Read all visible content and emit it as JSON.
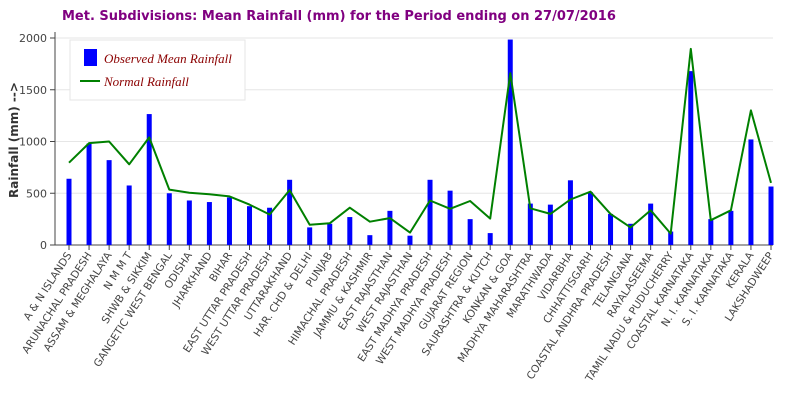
{
  "colors": {
    "observed": "#0000ff",
    "normal": "#008000",
    "title": "#800080",
    "legend_text": "#8b0000",
    "grid": "#e6e6e6"
  },
  "chart_data": {
    "type": "bar",
    "title": "Met. Subdivisions: Mean Rainfall (mm) for the Period ending on 27/07/2016",
    "xlabel": "",
    "ylabel": "Rainfall (mm) -->",
    "ylim": [
      0,
      2000
    ],
    "yticks": [
      0,
      500,
      1000,
      1500,
      2000
    ],
    "grid": true,
    "legend_position": "top-left",
    "categories": [
      "A & N ISLANDS",
      "ARUNACHAL PRADESH",
      "ASSAM & MEGHALAYA",
      "N M M T",
      "SHWB & SIKKIM",
      "GANGETIC WEST BENGAL",
      "ODISHA",
      "JHARKHAND",
      "BIHAR",
      "EAST UTTAR PRADESH",
      "WEST UTTAR PRADESH",
      "UTTARAKHAND",
      "HAR. CHD & DELHI",
      "PUNJAB",
      "HIMACHAL PRADESH",
      "JAMMU & KASHMIR",
      "EAST RAJASTHAN",
      "WEST RAJASTHAN",
      "EAST MADHYA PRADESH",
      "WEST MADHYA PRADESH",
      "GUJARAT REGION",
      "SAURASHTRA & KUTCH",
      "KONKAN & GOA",
      "MADHYA MAHARASHTRA",
      "MARATHWADA",
      "VIDARBHA",
      "CHHATTISGARH",
      "COASTAL ANDHRA PRADESH",
      "TELANGANA",
      "RAYALASEEMA",
      "TAMIL NADU & PUDUCHERRY",
      "COASTAL KARNATAKA",
      "N. I. KARNATAKA",
      "S. I. KARNATAKA",
      "KERALA",
      "LAKSHADWEEP"
    ],
    "series": [
      {
        "name": "Observed Mean Rainfall",
        "type": "bar",
        "values": [
          640,
          980,
          820,
          575,
          1265,
          500,
          430,
          415,
          460,
          375,
          360,
          630,
          170,
          205,
          270,
          95,
          330,
          90,
          630,
          525,
          250,
          115,
          1985,
          400,
          390,
          625,
          510,
          300,
          205,
          400,
          130,
          1680,
          250,
          330,
          1020,
          565
        ]
      },
      {
        "name": "Normal Rainfall",
        "type": "line",
        "values": [
          795,
          985,
          1000,
          780,
          1040,
          535,
          505,
          490,
          470,
          390,
          295,
          530,
          195,
          210,
          360,
          225,
          260,
          120,
          430,
          350,
          425,
          255,
          1660,
          355,
          300,
          440,
          515,
          300,
          170,
          335,
          110,
          1895,
          240,
          335,
          1300,
          600
        ]
      }
    ]
  }
}
